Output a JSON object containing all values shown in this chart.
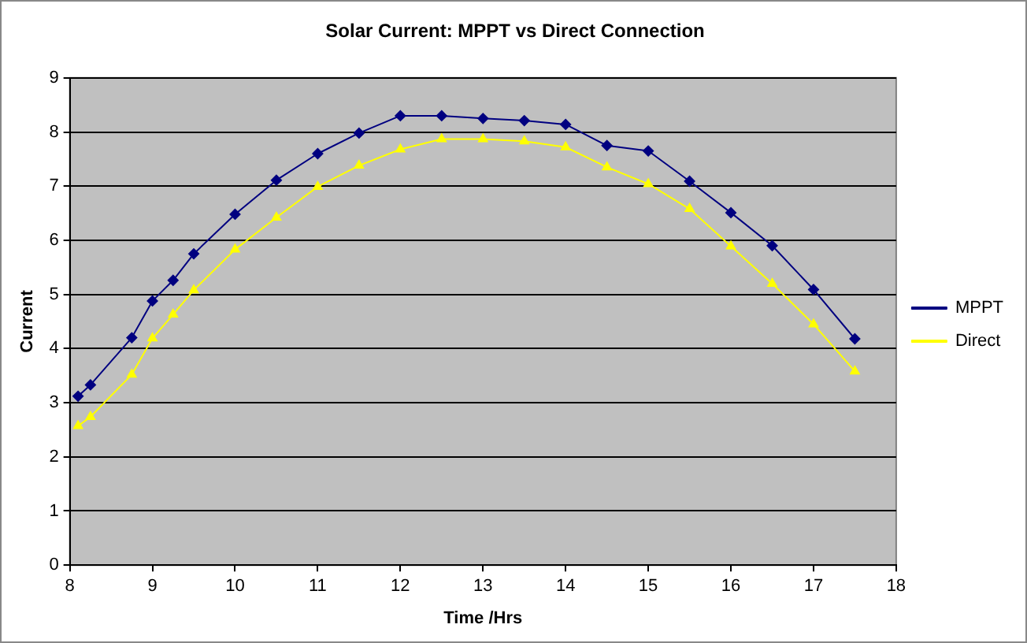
{
  "chart_data": {
    "type": "line",
    "title": "Solar Current: MPPT vs Direct Connection",
    "xlabel": "Time /Hrs",
    "ylabel": "Current",
    "x": [
      8.1,
      8.25,
      8.75,
      9,
      9.25,
      9.5,
      10,
      10.5,
      11,
      11.5,
      12,
      12.5,
      13,
      13.5,
      14,
      14.5,
      15,
      15.5,
      16,
      16.5,
      17,
      17.5
    ],
    "series": [
      {
        "name": "MPPT",
        "color": "#000080",
        "marker": "diamond",
        "values": [
          3.12,
          3.33,
          4.2,
          4.88,
          5.26,
          5.75,
          6.48,
          7.11,
          7.6,
          7.98,
          8.3,
          8.3,
          8.25,
          8.21,
          8.14,
          7.75,
          7.65,
          7.09,
          6.51,
          5.9,
          5.09,
          4.18
        ]
      },
      {
        "name": "Direct",
        "color": "#ffff00",
        "marker": "triangle",
        "values": [
          2.57,
          2.74,
          3.52,
          4.19,
          4.63,
          5.08,
          5.83,
          6.42,
          6.99,
          7.38,
          7.68,
          7.87,
          7.87,
          7.83,
          7.72,
          7.35,
          7.04,
          6.58,
          5.89,
          5.2,
          4.45,
          3.58
        ]
      }
    ],
    "xlim": [
      8,
      18
    ],
    "xticks": [
      8,
      9,
      10,
      11,
      12,
      13,
      14,
      15,
      16,
      17,
      18
    ],
    "ylim": [
      0,
      9
    ],
    "yticks": [
      0,
      1,
      2,
      3,
      4,
      5,
      6,
      7,
      8,
      9
    ],
    "grid": "y",
    "legend": "right",
    "line_style": "solid"
  }
}
